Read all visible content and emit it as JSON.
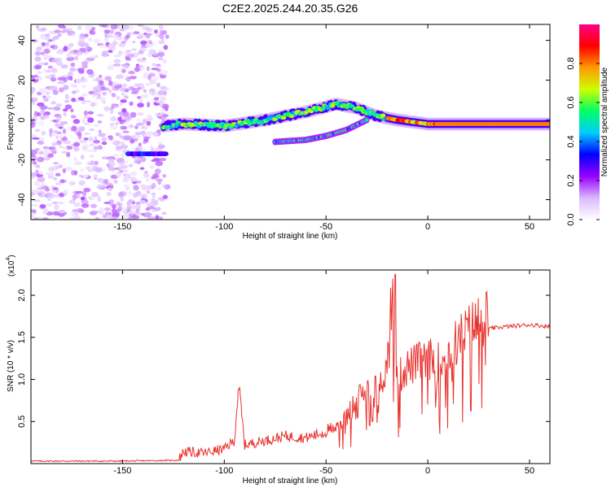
{
  "title": "C2E2.2025.244.20.35.G26",
  "chart_data": [
    {
      "type": "heatmap",
      "xlabel": "Height of straight line (km)",
      "ylabel": "Frequency (Hz)",
      "xlim": [
        -195,
        60
      ],
      "ylim": [
        -50,
        48
      ],
      "xticks": [
        -150,
        -100,
        -50,
        0,
        50
      ],
      "yticks": [
        -40,
        -20,
        0,
        20,
        40
      ],
      "colorbar": {
        "label": "Normalized spectral amplitude",
        "range": [
          0,
          1
        ],
        "ticks": [
          0.0,
          0.2,
          0.4,
          0.6,
          0.8
        ],
        "colormap": [
          "#ffffff",
          "#d9b8ff",
          "#9900ff",
          "#0000ff",
          "#00ccff",
          "#00ff66",
          "#ccff00",
          "#ff9900",
          "#ff0000",
          "#ff0088"
        ]
      },
      "features": [
        {
          "name": "noise-scatter",
          "x_range": [
            -195,
            -128
          ],
          "y_range": [
            -50,
            48
          ],
          "amplitude": 0.12
        },
        {
          "name": "low-band",
          "x_range": [
            -147,
            -128
          ],
          "y_center": -17,
          "amplitude": 0.3
        },
        {
          "name": "main-band",
          "points": [
            [
              -130,
              -3
            ],
            [
              -120,
              -2
            ],
            [
              -100,
              -3
            ],
            [
              -80,
              0
            ],
            [
              -60,
              4
            ],
            [
              -45,
              8
            ],
            [
              -35,
              6
            ],
            [
              -25,
              2
            ],
            [
              -15,
              0
            ],
            [
              0,
              -2
            ],
            [
              30,
              -2
            ],
            [
              60,
              -2
            ]
          ],
          "amplitude": [
            0.4,
            0.85
          ]
        },
        {
          "name": "side-band",
          "points": [
            [
              -75,
              -11
            ],
            [
              -60,
              -10
            ],
            [
              -50,
              -8
            ],
            [
              -40,
              -5
            ],
            [
              -30,
              0
            ]
          ],
          "amplitude": 0.35
        }
      ]
    },
    {
      "type": "line",
      "xlabel": "Height of straight line (km)",
      "ylabel": "SNR (10 * v/v)",
      "y_multiplier": "(x10",
      "y_multiplier_exp": "4",
      "y_multiplier_close": ")",
      "xlim": [
        -195,
        60
      ],
      "ylim": [
        0,
        2.3
      ],
      "xticks": [
        -150,
        -100,
        -50,
        0,
        50
      ],
      "yticks": [
        0.5,
        1.0,
        1.5,
        2.0
      ],
      "color": "#e8322e",
      "series": [
        {
          "name": "SNR",
          "x": [
            -195,
            -150,
            -122,
            -120,
            -110,
            -100,
            -95,
            -93,
            -90,
            -80,
            -70,
            -60,
            -50,
            -40,
            -35,
            -30,
            -25,
            -20,
            -18,
            -16,
            -14,
            -10,
            -5,
            0,
            5,
            10,
            15,
            20,
            25,
            30,
            35,
            40,
            45,
            50,
            55,
            60
          ],
          "y": [
            0.03,
            0.03,
            0.04,
            0.12,
            0.1,
            0.15,
            0.25,
            0.88,
            0.2,
            0.25,
            0.3,
            0.28,
            0.35,
            0.5,
            0.7,
            0.8,
            0.9,
            1.0,
            2.25,
            0.9,
            0.95,
            1.05,
            1.1,
            1.15,
            1.1,
            1.2,
            1.35,
            1.45,
            1.55,
            1.6,
            1.62,
            1.63,
            1.64,
            1.65,
            1.64,
            1.63
          ]
        }
      ]
    }
  ]
}
